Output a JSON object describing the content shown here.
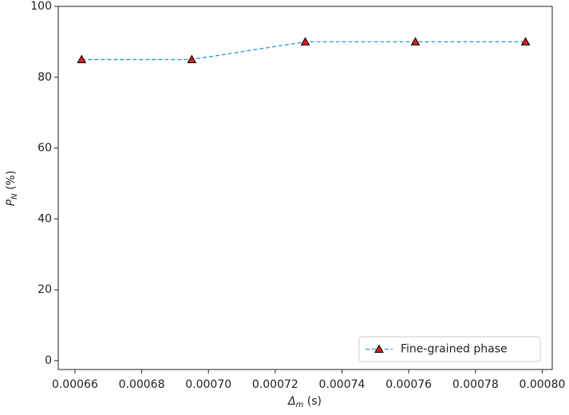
{
  "chart_data": {
    "type": "line",
    "x_label": {
      "symbol": "Δ",
      "subscript": "m",
      "unit": "(s)"
    },
    "y_label": {
      "symbol": "P",
      "subscript": "N",
      "unit": "(%)"
    },
    "x": [
      0.000662,
      0.000695,
      0.000729,
      0.000762,
      0.000795
    ],
    "series": [
      {
        "name": "Fine-grained phase",
        "color": "#1f9bd7",
        "marker_color": "#d62020",
        "values": [
          85,
          85,
          90,
          90,
          90
        ]
      }
    ],
    "xlim": [
      0.000655,
      0.000803
    ],
    "xticks": [
      0.00066,
      0.00068,
      {
        "value": 0.0007,
        "label": "0.00070"
      },
      0.00072,
      0.00074,
      0.00076,
      0.00078,
      {
        "value": 0.0008,
        "label": "0.00080"
      }
    ],
    "ylim": [
      -2.5,
      100
    ],
    "yticks": [
      0,
      20,
      40,
      60,
      80,
      100
    ],
    "legend": "lower right",
    "grid": false
  }
}
